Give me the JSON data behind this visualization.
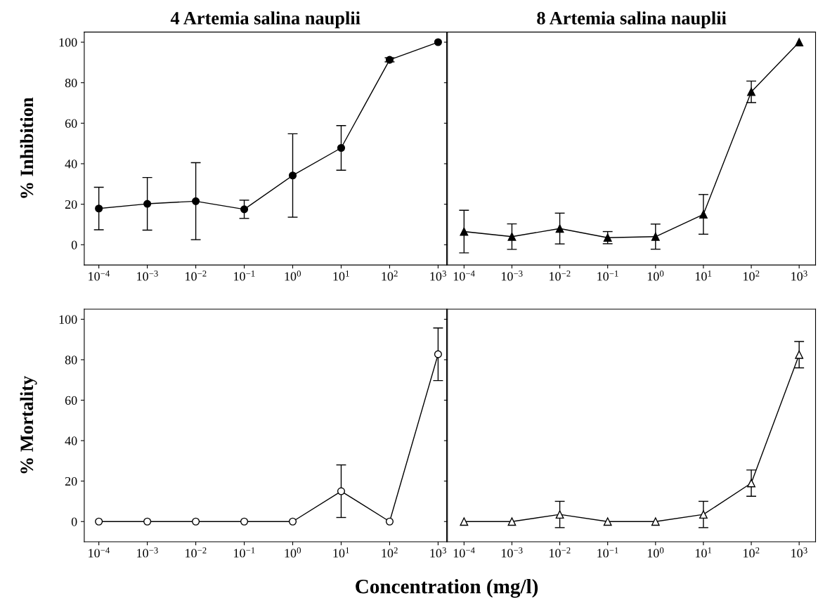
{
  "chart_data": [
    {
      "type": "line",
      "title": "4 Artemia salina nauplii",
      "ylabel": "% Inhibition",
      "log": "x",
      "marker": "circle",
      "line_style": "solid",
      "grid": false,
      "tick_labels": "xy",
      "x": [
        0.0001,
        0.001,
        0.01,
        0.1,
        1,
        10,
        100,
        1000
      ],
      "series": [
        {
          "color": "#000000",
          "colors": [
            "#000000",
            "#000000",
            "#000000",
            "#000000",
            "#000000",
            "#000000",
            "#000000",
            "#000000"
          ],
          "values": [
            17.9,
            20.2,
            21.5,
            17.5,
            34.2,
            47.8,
            91.3,
            100
          ],
          "errors": [
            10.5,
            13,
            19,
            4.5,
            20.6,
            11,
            1,
            null
          ]
        }
      ],
      "xlim": [
        5e-05,
        1500
      ],
      "ylim": [
        -10,
        105
      ],
      "xticks": [
        {
          "value": 0.0001,
          "label": "10$^{−4}$"
        },
        {
          "value": 0.001,
          "label": "10$^{−3}$"
        },
        {
          "value": 0.01,
          "label": "10$^{−2}$"
        },
        {
          "value": 0.1,
          "label": "10$^{−1}$"
        },
        {
          "value": 1,
          "label": "10$^{0}$"
        },
        {
          "value": 10,
          "label": "10$^{1}$"
        },
        {
          "value": 100,
          "label": "10$^{2}$"
        },
        {
          "value": 1000,
          "label": "10$^{3}$"
        }
      ],
      "yticks": [
        0,
        20,
        40,
        60,
        80,
        100
      ]
    },
    {
      "type": "line",
      "title": "8 Artemia salina nauplii",
      "log": "x",
      "marker": "triangle",
      "line_style": "solid",
      "grid": false,
      "tick_labels": "x",
      "x": [
        0.0001,
        0.001,
        0.01,
        0.1,
        1,
        10,
        100,
        1000
      ],
      "series": [
        {
          "color": "#000000",
          "colors": [
            "#000000",
            "#000000",
            "#000000",
            "#000000",
            "#000000",
            "#000000",
            "#000000",
            "#000000"
          ],
          "values": [
            6.5,
            4,
            8,
            3.5,
            4,
            15,
            75.5,
            100
          ],
          "errors": [
            10.5,
            6.3,
            7.6,
            3,
            6.2,
            9.8,
            5.3,
            null
          ]
        }
      ],
      "xlim": [
        4.5e-05,
        2200
      ],
      "ylim": [
        -10,
        105
      ],
      "xticks": [
        {
          "value": 0.0001,
          "label": "10$^{−4}$"
        },
        {
          "value": 0.001,
          "label": "10$^{−3}$"
        },
        {
          "value": 0.01,
          "label": "10$^{−2}$"
        },
        {
          "value": 0.1,
          "label": "10$^{−1}$"
        },
        {
          "value": 1,
          "label": "10$^{0}$"
        },
        {
          "value": 10,
          "label": "10$^{1}$"
        },
        {
          "value": 100,
          "label": "10$^{2}$"
        },
        {
          "value": 1000,
          "label": "10$^{3}$"
        }
      ],
      "yticks": [
        0,
        20,
        40,
        60,
        80,
        100
      ]
    },
    {
      "type": "line",
      "ylabel": "% Mortality",
      "xlabel": "Concentration (mg/l)",
      "log": "x",
      "marker": "circle",
      "line_style": "solid",
      "grid": false,
      "tick_labels": "xy",
      "x": [
        0.0001,
        0.001,
        0.01,
        0.1,
        1,
        10,
        100,
        1000
      ],
      "series": [
        {
          "color": "#000000",
          "colors": [
            "#ffffff",
            "#ffffff",
            "#ffffff",
            "#ffffff",
            "#ffffff",
            "#ffffff",
            "#ffffff",
            "#ffffff"
          ],
          "values": [
            0,
            0,
            0,
            0,
            0,
            15,
            0,
            82.7
          ],
          "errors": [
            null,
            null,
            null,
            null,
            null,
            13,
            null,
            13
          ]
        }
      ],
      "xlim": [
        5e-05,
        1500
      ],
      "ylim": [
        -10,
        105
      ],
      "xticks": [
        {
          "value": 0.0001,
          "label": "10$^{−4}$"
        },
        {
          "value": 0.001,
          "label": "10$^{−3}$"
        },
        {
          "value": 0.01,
          "label": "10$^{−2}$"
        },
        {
          "value": 0.1,
          "label": "10$^{−1}$"
        },
        {
          "value": 1,
          "label": "10$^{0}$"
        },
        {
          "value": 10,
          "label": "10$^{1}$"
        },
        {
          "value": 100,
          "label": "10$^{2}$"
        },
        {
          "value": 1000,
          "label": "10$^{3}$"
        }
      ],
      "yticks": [
        0,
        20,
        40,
        60,
        80,
        100
      ]
    },
    {
      "type": "line",
      "log": "x",
      "marker": "triangle",
      "line_style": "solid",
      "grid": false,
      "tick_labels": "x",
      "x": [
        0.0001,
        0.001,
        0.01,
        0.1,
        1,
        10,
        100,
        1000
      ],
      "series": [
        {
          "color": "#000000",
          "colors": [
            "#ffffff",
            "#ffffff",
            "#ffffff",
            "#ffffff",
            "#ffffff",
            "#ffffff",
            "#ffffff",
            "#ffffff"
          ],
          "values": [
            0,
            0,
            3.5,
            0,
            0,
            3.5,
            19,
            82.5
          ],
          "errors": [
            null,
            null,
            6.5,
            null,
            null,
            6.5,
            6.5,
            6.5
          ]
        }
      ],
      "xlim": [
        4.5e-05,
        2200
      ],
      "ylim": [
        -10,
        105
      ],
      "xticks": [
        {
          "value": 0.0001,
          "label": "10$^{−4}$"
        },
        {
          "value": 0.001,
          "label": "10$^{−3}$"
        },
        {
          "value": 0.01,
          "label": "10$^{−2}$"
        },
        {
          "value": 0.1,
          "label": "10$^{−1}$"
        },
        {
          "value": 1,
          "label": "10$^{0}$"
        },
        {
          "value": 10,
          "label": "10$^{1}$"
        },
        {
          "value": 100,
          "label": "10$^{2}$"
        },
        {
          "value": 1000,
          "label": "10$^{3}$"
        }
      ],
      "yticks": [
        0,
        20,
        40,
        60,
        80,
        100
      ]
    }
  ]
}
